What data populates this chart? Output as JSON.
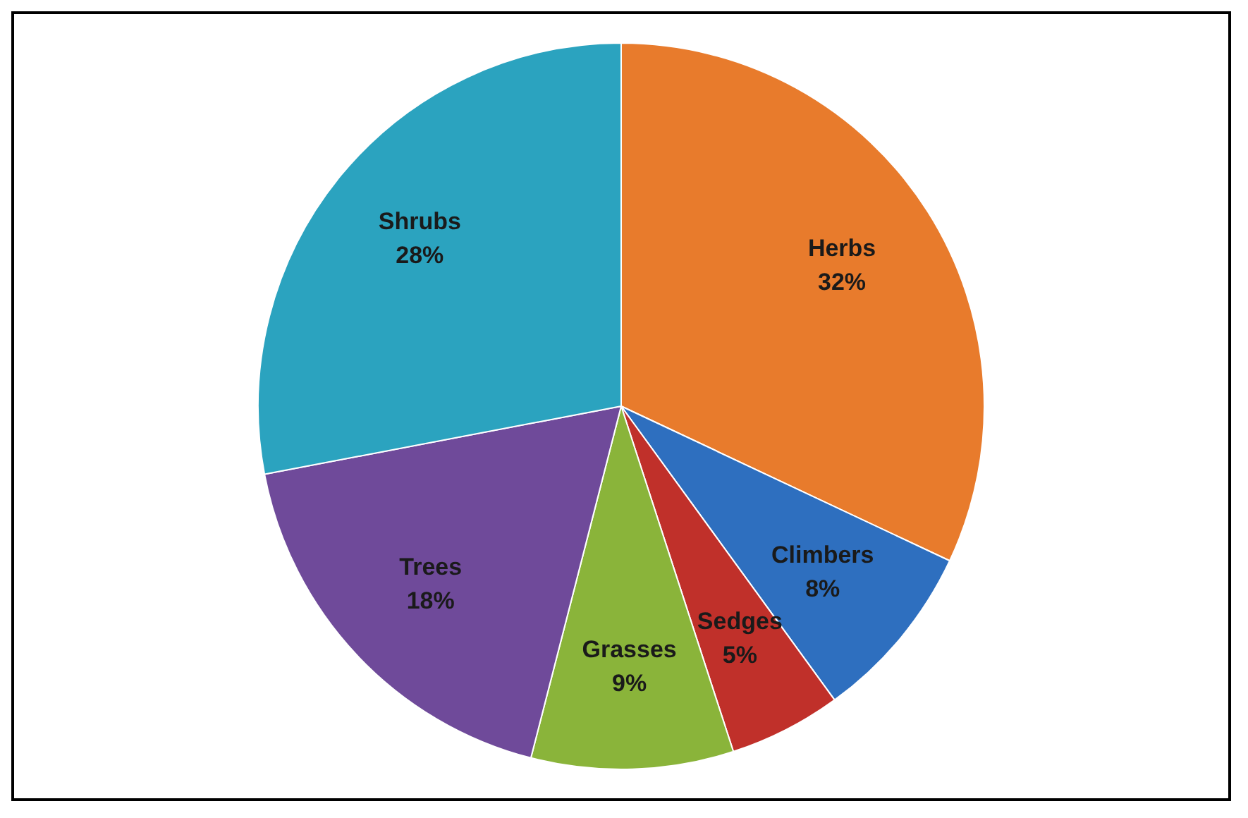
{
  "chart_data": {
    "type": "pie",
    "categories": [
      "Herbs",
      "Climbers",
      "Sedges",
      "Grasses",
      "Trees",
      "Shrubs"
    ],
    "values": [
      32,
      8,
      5,
      9,
      18,
      28
    ],
    "colors": [
      "#e87b2c",
      "#2e6fbf",
      "#c0302a",
      "#8ab43a",
      "#6f4a9a",
      "#2ba3bf"
    ],
    "value_labels": [
      "32%",
      "8%",
      "5%",
      "9%",
      "18%",
      "28%"
    ],
    "legend": false
  }
}
